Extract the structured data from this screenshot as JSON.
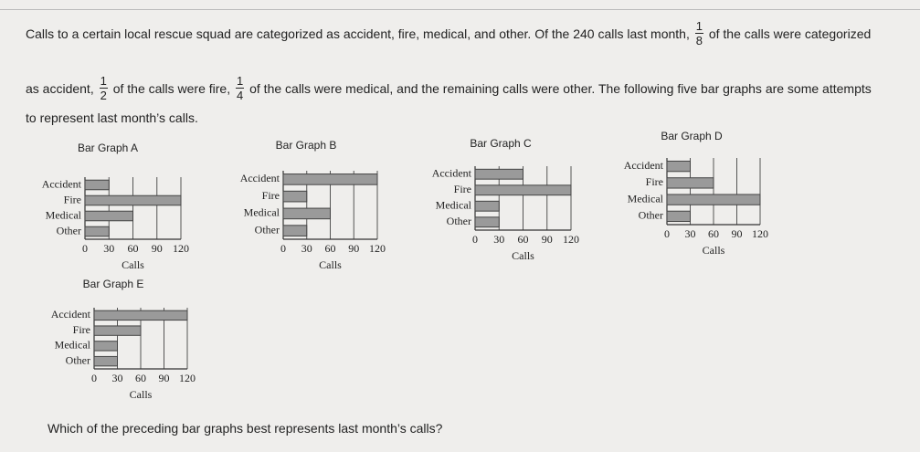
{
  "problem": {
    "line_1": "Calls to a certain local rescue squad are categorized as accident, fire, medical, and other. Of the 240 calls last month,",
    "fraction_1": {
      "numerator": "1",
      "denominator": "8"
    },
    "line_1_end": "of the calls were categorized",
    "line_2_start": "as accident,",
    "fraction_2": {
      "numerator": "1",
      "denominator": "2"
    },
    "line_2_mid": "of the calls were fire,",
    "fraction_3": {
      "numerator": "1",
      "denominator": "4"
    },
    "line_2_end": "of the calls were medical, and the remaining calls were other. The following five bar graphs are some attempts",
    "line_3": "to represent last month’s calls.",
    "question": "Which of the preceding bar graphs best represents last month’s calls?"
  },
  "chart_data": [
    {
      "type": "hbar",
      "title": "Bar Graph A",
      "categories": [
        "Accident",
        "Fire",
        "Medical",
        "Other"
      ],
      "values": [
        30,
        120,
        60,
        30
      ],
      "color": "#9a9a9a",
      "xlabel": "Calls",
      "xlim": [
        0,
        120
      ],
      "xticks": [
        0,
        30,
        60,
        90,
        120
      ],
      "grid": true
    },
    {
      "type": "hbar",
      "title": "Bar Graph B",
      "categories": [
        "Accident",
        "Fire",
        "Medical",
        "Other"
      ],
      "values": [
        120,
        30,
        60,
        30
      ],
      "color": "#9a9a9a",
      "xlabel": "Calls",
      "xlim": [
        0,
        120
      ],
      "xticks": [
        0,
        30,
        60,
        90,
        120
      ],
      "grid": true
    },
    {
      "type": "hbar",
      "title": "Bar Graph C",
      "categories": [
        "Accident",
        "Fire",
        "Medical",
        "Other"
      ],
      "values": [
        60,
        120,
        30,
        30
      ],
      "color": "#9a9a9a",
      "xlabel": "Calls",
      "xlim": [
        0,
        120
      ],
      "xticks": [
        0,
        30,
        60,
        90,
        120
      ],
      "grid": true
    },
    {
      "type": "hbar",
      "title": "Bar Graph D",
      "categories": [
        "Accident",
        "Fire",
        "Medical",
        "Other"
      ],
      "values": [
        30,
        60,
        120,
        30
      ],
      "color": "#9a9a9a",
      "xlabel": "Calls",
      "xlim": [
        0,
        120
      ],
      "xticks": [
        0,
        30,
        60,
        90,
        120
      ],
      "grid": true
    },
    {
      "type": "hbar",
      "title": "Bar Graph E",
      "categories": [
        "Accident",
        "Fire",
        "Medical",
        "Other"
      ],
      "values": [
        120,
        60,
        30,
        30
      ],
      "color": "#9a9a9a",
      "xlabel": "Calls",
      "xlim": [
        0,
        120
      ],
      "xticks": [
        0,
        30,
        60,
        90,
        120
      ],
      "grid": true
    }
  ]
}
